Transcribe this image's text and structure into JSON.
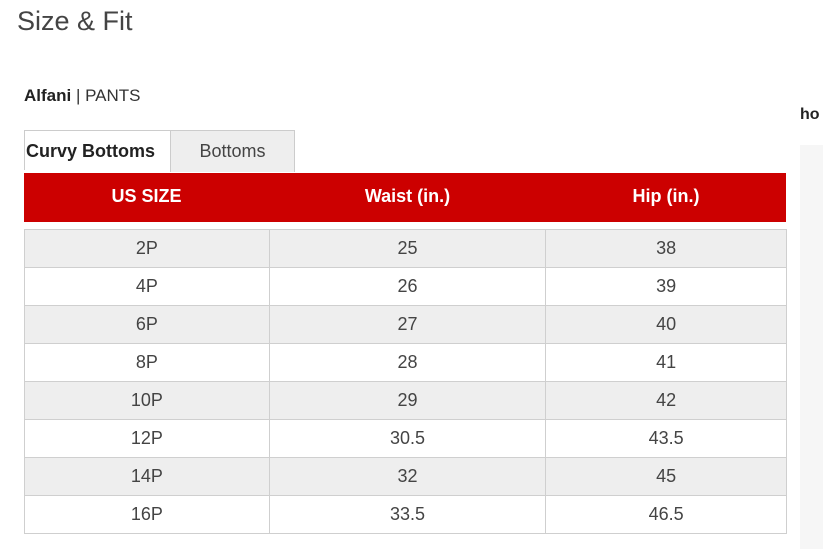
{
  "page": {
    "title": "Size & Fit"
  },
  "brand": {
    "name": "Alfani",
    "separator": " | ",
    "category": "PANTS"
  },
  "side": {
    "text": "ho"
  },
  "tabs": [
    {
      "label": "Curvy Bottoms",
      "active": true
    },
    {
      "label": "Bottoms",
      "active": false
    }
  ],
  "table": {
    "accent_color": "#cc0000",
    "headers": [
      "US SIZE",
      "Waist (in.)",
      "Hip (in.)"
    ],
    "rows": [
      [
        "2P",
        "25",
        "38"
      ],
      [
        "4P",
        "26",
        "39"
      ],
      [
        "6P",
        "27",
        "40"
      ],
      [
        "8P",
        "28",
        "41"
      ],
      [
        "10P",
        "29",
        "42"
      ],
      [
        "12P",
        "30.5",
        "43.5"
      ],
      [
        "14P",
        "32",
        "45"
      ],
      [
        "16P",
        "33.5",
        "46.5"
      ]
    ]
  }
}
